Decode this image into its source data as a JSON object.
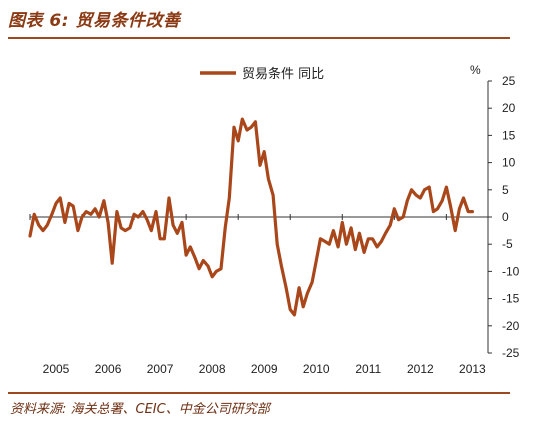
{
  "header": {
    "title": "图表 6: 贸易条件改善"
  },
  "footer": {
    "source": "资料来源: 海关总署、CEIC、中金公司研究部"
  },
  "chart_data": {
    "type": "line",
    "title": "图表 6: 贸易条件改善",
    "xlabel": "",
    "ylabel": "%",
    "ylim": [
      -25,
      25
    ],
    "yticks": [
      25,
      20,
      15,
      10,
      5,
      0,
      -5,
      -10,
      -15,
      -20,
      -25
    ],
    "ytick_labels": [
      "25",
      "20",
      "15",
      "10",
      "5",
      "0",
      "-5",
      "-10",
      "-15",
      "-20",
      "-25"
    ],
    "xtick_labels": [
      "2005",
      "2006",
      "2007",
      "2008",
      "2009",
      "2010",
      "2011",
      "2012",
      "2013"
    ],
    "xlim": [
      2005.0,
      2013.8
    ],
    "grid": false,
    "legend_position": "top-center",
    "color": "#a9471a",
    "series": [
      {
        "name": "贸易条件 同比",
        "x": [
          2005.0,
          2005.08,
          2005.17,
          2005.25,
          2005.33,
          2005.42,
          2005.5,
          2005.58,
          2005.67,
          2005.75,
          2005.83,
          2005.92,
          2006.0,
          2006.08,
          2006.17,
          2006.25,
          2006.33,
          2006.42,
          2006.5,
          2006.58,
          2006.67,
          2006.75,
          2006.83,
          2006.92,
          2007.0,
          2007.08,
          2007.17,
          2007.25,
          2007.33,
          2007.42,
          2007.5,
          2007.58,
          2007.67,
          2007.75,
          2007.83,
          2007.92,
          2008.0,
          2008.08,
          2008.17,
          2008.25,
          2008.33,
          2008.42,
          2008.5,
          2008.58,
          2008.67,
          2008.75,
          2008.83,
          2008.92,
          2009.0,
          2009.08,
          2009.17,
          2009.25,
          2009.33,
          2009.42,
          2009.5,
          2009.58,
          2009.67,
          2009.75,
          2009.83,
          2009.92,
          2010.0,
          2010.08,
          2010.17,
          2010.25,
          2010.33,
          2010.42,
          2010.5,
          2010.58,
          2010.67,
          2010.75,
          2010.83,
          2010.92,
          2011.0,
          2011.08,
          2011.17,
          2011.25,
          2011.33,
          2011.42,
          2011.5,
          2011.58,
          2011.67,
          2011.75,
          2011.83,
          2011.92,
          2012.0,
          2012.08,
          2012.17,
          2012.25,
          2012.33,
          2012.42,
          2012.5,
          2012.58,
          2012.67,
          2012.75,
          2012.83,
          2012.92,
          2013.0,
          2013.08,
          2013.17,
          2013.25,
          2013.33,
          2013.42,
          2013.5
        ],
        "values": [
          -3.5,
          0.5,
          -1.5,
          -2.5,
          -1.5,
          0.5,
          2.5,
          3.5,
          -1.0,
          2.5,
          2.0,
          -2.5,
          0.0,
          1.0,
          0.5,
          1.5,
          0.0,
          3.0,
          -1.0,
          -8.5,
          1.0,
          -2.0,
          -2.5,
          -2.0,
          0.5,
          0.0,
          1.0,
          -0.5,
          -2.5,
          1.0,
          -4.0,
          -4.0,
          3.5,
          -1.5,
          -3.0,
          -1.0,
          -7.0,
          -5.5,
          -7.5,
          -9.5,
          -8.0,
          -9.0,
          -11.0,
          -10.0,
          -9.5,
          -2.0,
          3.5,
          16.5,
          14.0,
          18.0,
          16.0,
          16.5,
          17.5,
          9.5,
          12.0,
          7.0,
          4.0,
          -5.0,
          -9.0,
          -13.0,
          -17.0,
          -18.0,
          -13.0,
          -16.5,
          -14.0,
          -12.0,
          -8.0,
          -4.0,
          -4.5,
          -5.0,
          -2.5,
          -5.5,
          -1.0,
          -5.0,
          -2.0,
          -6.0,
          -3.0,
          -6.5,
          -4.0,
          -4.0,
          -5.5,
          -4.5,
          -3.0,
          -1.5,
          1.5,
          -0.5,
          0.0,
          3.0,
          5.0,
          4.0,
          3.5,
          5.0,
          5.5,
          1.0,
          1.5,
          3.0,
          5.5,
          2.0,
          -2.5,
          1.5,
          3.5,
          1.0,
          1.0
        ]
      }
    ]
  }
}
